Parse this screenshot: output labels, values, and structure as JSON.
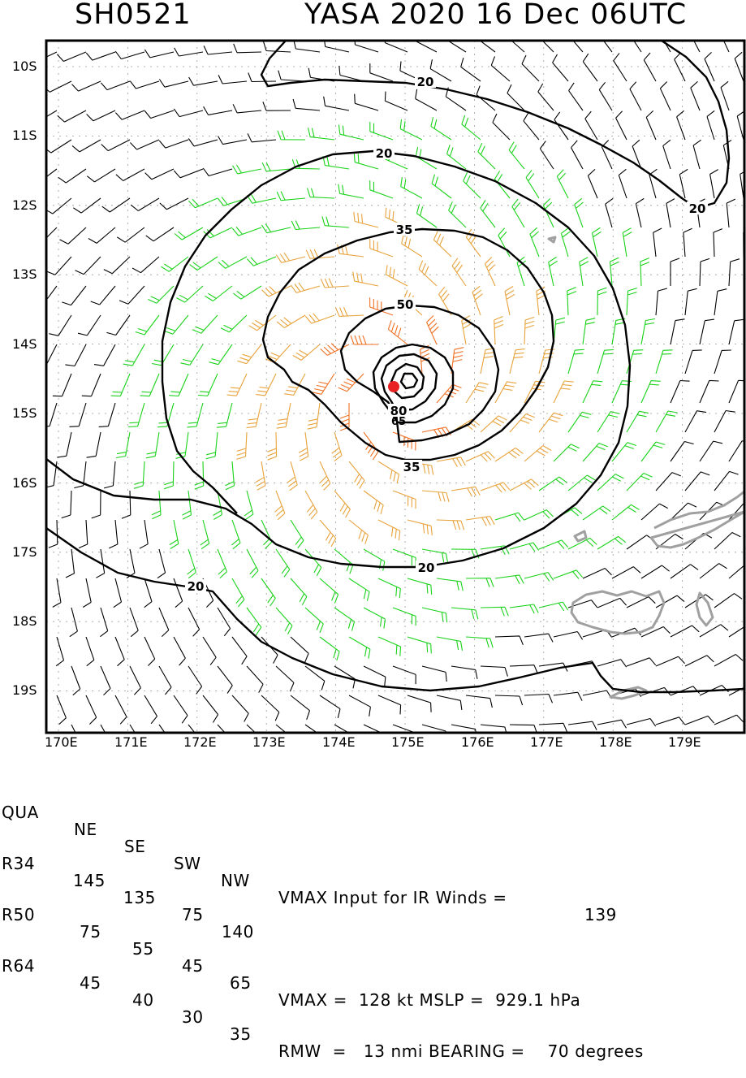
{
  "title": {
    "storm_id": "SH0521",
    "header": "YASA 2020 16 Dec 06UTC"
  },
  "lat_labels": [
    "10S",
    "11S",
    "12S",
    "13S",
    "14S",
    "15S",
    "16S",
    "17S",
    "18S",
    "19S"
  ],
  "lon_labels": [
    "170E",
    "171E",
    "172E",
    "173E",
    "174E",
    "175E",
    "176E",
    "177E",
    "178E",
    "179E"
  ],
  "contour_labels": [
    "20",
    "20",
    "20",
    "20",
    "20",
    "35",
    "35",
    "50",
    "80",
    "65"
  ],
  "colors": {
    "low": "#000000",
    "gale": "#19d219",
    "storm": "#e8a23a",
    "hurricane": "#f07022",
    "core": "#e82222",
    "land": "#a0a0a0",
    "grid": "#9a9a9a"
  },
  "table": {
    "header": {
      "label": "QUA",
      "cols": [
        "NE",
        "SE",
        "SW",
        "NW"
      ],
      "note": "VMAX Input for IR Winds =",
      "note_value": "139"
    },
    "rows": [
      {
        "label": "R34",
        "vals": [
          "145",
          "135",
          "75",
          "140"
        ]
      },
      {
        "label": "R50",
        "vals": [
          "75",
          "55",
          "45",
          "65"
        ],
        "extra": "VMAX =  128 kt MSLP =  929.1 hPa"
      },
      {
        "label": "R64",
        "vals": [
          "45",
          "40",
          "30",
          "35"
        ],
        "extra": "RMW  =   13 nmi BEARING =    70 degrees"
      }
    ]
  }
}
